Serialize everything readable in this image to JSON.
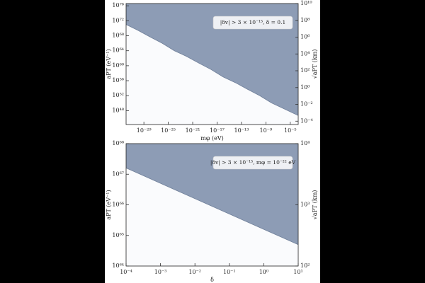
{
  "chart_data": [
    {
      "type": "area",
      "color": "#8d9cb5",
      "log_x": true,
      "log_y": true,
      "xlabel": "mφ (eV)",
      "ylabel": "aPT (eV⁻¹)",
      "y2label": "√aPT (km)",
      "annotation": "|δv| > 3 × 10⁻¹⁵, δ = 0.1",
      "x": [
        1.2e-32,
        1e-30,
        1e-28,
        1e-26,
        1e-24,
        1e-22,
        1e-20,
        1e-18,
        1e-16,
        1e-14,
        1e-12,
        1e-10,
        1e-08,
        1e-06,
        0.0002
      ],
      "values": [
        1e+71,
        3e+69,
        5e+67,
        1e+66,
        1e+64,
        3e+62,
        5e+60,
        1e+59,
        1e+57,
        3e+55,
        5e+53,
        1e+52,
        1e+50,
        3e+48,
        5e+46
      ],
      "xlim": [
        1.2e-32,
        0.0002
      ],
      "ylim": [
        2e+44,
        4e+76
      ],
      "y2lim": [
        4e-05,
        10000000000.0
      ],
      "xticks": [
        {
          "value": 1e-29,
          "label": "10⁻²⁹"
        },
        {
          "value": 1e-25,
          "label": "10⁻²⁵"
        },
        {
          "value": 1e-21,
          "label": "10⁻²¹"
        },
        {
          "value": 1e-17,
          "label": "10⁻¹⁷"
        },
        {
          "value": 1e-13,
          "label": "10⁻¹³"
        },
        {
          "value": 1e-09,
          "label": "10⁻⁹"
        },
        {
          "value": 1e-05,
          "label": "10⁻⁵"
        }
      ],
      "yticks": [
        {
          "value": 1e+48,
          "label": "10⁴⁸"
        },
        {
          "value": 1e+52,
          "label": "10⁵²"
        },
        {
          "value": 1e+56,
          "label": "10⁵⁶"
        },
        {
          "value": 1e+60,
          "label": "10⁶⁰"
        },
        {
          "value": 1e+64,
          "label": "10⁶⁴"
        },
        {
          "value": 1e+68,
          "label": "10⁶⁸"
        },
        {
          "value": 1e+72,
          "label": "10⁷²"
        },
        {
          "value": 1e+76,
          "label": "10⁷⁶"
        }
      ],
      "y2ticks": [
        {
          "value": 0.0001,
          "label": "10⁻⁴"
        },
        {
          "value": 0.01,
          "label": "10⁻²"
        },
        {
          "value": 1,
          "label": "10⁰"
        },
        {
          "value": 100,
          "label": "10²"
        },
        {
          "value": 10000,
          "label": "10⁴"
        },
        {
          "value": 1000000,
          "label": "10⁶"
        },
        {
          "value": 100000000,
          "label": "10⁸"
        },
        {
          "value": 10000000000,
          "label": "10¹⁰"
        }
      ]
    },
    {
      "type": "area",
      "color": "#8d9cb5",
      "log_x": true,
      "log_y": true,
      "xlabel": "δ",
      "ylabel": "aPT (eV⁻¹)",
      "y2label": "√aPT (km)",
      "annotation": "|δv| > 3 × 10⁻¹⁵, mφ = 10⁻²² eV",
      "x": [
        0.0001,
        10
      ],
      "values": [
        1.6e+67,
        5e+64
      ],
      "xlim": [
        0.0001,
        10
      ],
      "ylim": [
        1e+64,
        1e+68
      ],
      "y2lim": [
        100,
        10000
      ],
      "xticks": [
        {
          "value": 0.0001,
          "label": "10⁻⁴"
        },
        {
          "value": 0.001,
          "label": "10⁻³"
        },
        {
          "value": 0.01,
          "label": "10⁻²"
        },
        {
          "value": 0.1,
          "label": "10⁻¹"
        },
        {
          "value": 1,
          "label": "10⁰"
        },
        {
          "value": 10,
          "label": "10¹"
        }
      ],
      "yticks": [
        {
          "value": 1e+64,
          "label": "10⁶⁴"
        },
        {
          "value": 1e+65,
          "label": "10⁶⁵"
        },
        {
          "value": 1e+66,
          "label": "10⁶⁶"
        },
        {
          "value": 1e+67,
          "label": "10⁶⁷"
        },
        {
          "value": 1e+68,
          "label": "10⁶⁸"
        }
      ],
      "y2ticks": [
        {
          "value": 100,
          "label": "10²"
        },
        {
          "value": 1000,
          "label": "10³"
        },
        {
          "value": 10000,
          "label": "10⁴"
        }
      ]
    }
  ]
}
